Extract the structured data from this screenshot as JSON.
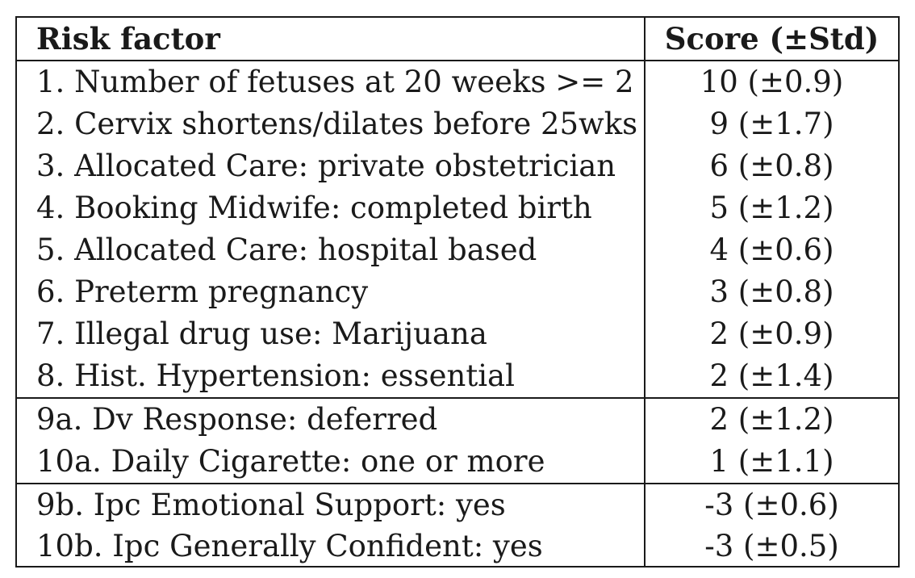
{
  "table": {
    "headers": {
      "risk_factor": "Risk factor",
      "score": "Score (±Std)"
    },
    "groups": [
      {
        "rows": [
          {
            "label": "1. Number of fetuses at 20 weeks >= 2",
            "score": "10 (±0.9)"
          },
          {
            "label": "2. Cervix shortens/dilates before 25wks",
            "score": "9 (±1.7)"
          },
          {
            "label": "3. Allocated Care: private obstetrician",
            "score": "6 (±0.8)"
          },
          {
            "label": "4. Booking Midwife: completed birth",
            "score": "5 (±1.2)"
          },
          {
            "label": "5. Allocated Care: hospital based",
            "score": "4 (±0.6)"
          },
          {
            "label": "6. Preterm pregnancy",
            "score": "3 (±0.8)"
          },
          {
            "label": "7. Illegal drug use: Marijuana",
            "score": "2 (±0.9)"
          },
          {
            "label": "8. Hist. Hypertension: essential",
            "score": "2 (±1.4)"
          }
        ]
      },
      {
        "rows": [
          {
            "label": "9a. Dv Response: deferred",
            "score": "2 (±1.2)"
          },
          {
            "label": "10a. Daily Cigarette: one or more",
            "score": "1 (±1.1)"
          }
        ]
      },
      {
        "rows": [
          {
            "label": "9b. Ipc Emotional Support: yes",
            "score": "-3 (±0.6)"
          },
          {
            "label": "10b. Ipc Generally Confident: yes",
            "score": "-3 (±0.5)"
          }
        ]
      }
    ]
  }
}
